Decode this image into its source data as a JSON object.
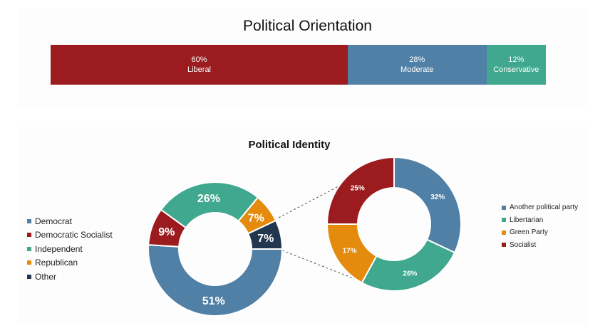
{
  "orientation": {
    "title": "Political Orientation",
    "segments": [
      {
        "pct": "60%",
        "label": "Liberal",
        "value": 60,
        "color": "#9b1b1e"
      },
      {
        "pct": "28%",
        "label": "Moderate",
        "value": 28,
        "color": "#5180a6"
      },
      {
        "pct": "12%",
        "label": "Conservative",
        "value": 12,
        "color": "#3fa88e"
      }
    ]
  },
  "identity": {
    "title": "Political Identity",
    "main": [
      {
        "name": "Democrat",
        "pct": "51%",
        "value": 51,
        "color": "#5180a6"
      },
      {
        "name": "Democratic Socialist",
        "pct": "9%",
        "value": 9,
        "color": "#9b1b1e"
      },
      {
        "name": "Independent",
        "pct": "26%",
        "value": 26,
        "color": "#3fa88e"
      },
      {
        "name": "Republican",
        "pct": "7%",
        "value": 7,
        "color": "#e48a0c"
      },
      {
        "name": "Other",
        "pct": "7%",
        "value": 7,
        "color": "#22364e"
      }
    ],
    "breakdown": [
      {
        "name": "Another political party",
        "pct": "32%",
        "value": 32,
        "color": "#5180a6"
      },
      {
        "name": "Libertarian",
        "pct": "26%",
        "value": 26,
        "color": "#3fa88e"
      },
      {
        "name": "Green Party",
        "pct": "17%",
        "value": 17,
        "color": "#e48a0c"
      },
      {
        "name": "Socialist",
        "pct": "25%",
        "value": 25,
        "color": "#9b1b1e"
      }
    ]
  },
  "chart_data": [
    {
      "type": "bar",
      "title": "Political Orientation",
      "categories": [
        "Liberal",
        "Moderate",
        "Conservative"
      ],
      "values": [
        60,
        28,
        12
      ],
      "stacked": true,
      "unit": "%"
    },
    {
      "type": "pie",
      "title": "Political Identity",
      "categories": [
        "Democrat",
        "Democratic Socialist",
        "Independent",
        "Republican",
        "Other"
      ],
      "values": [
        51,
        9,
        26,
        7,
        7
      ],
      "unit": "%",
      "legend": "left"
    },
    {
      "type": "pie",
      "categories": [
        "Another political party",
        "Libertarian",
        "Green Party",
        "Socialist"
      ],
      "values": [
        32,
        26,
        17,
        25
      ],
      "unit": "%",
      "legend": "right"
    }
  ]
}
